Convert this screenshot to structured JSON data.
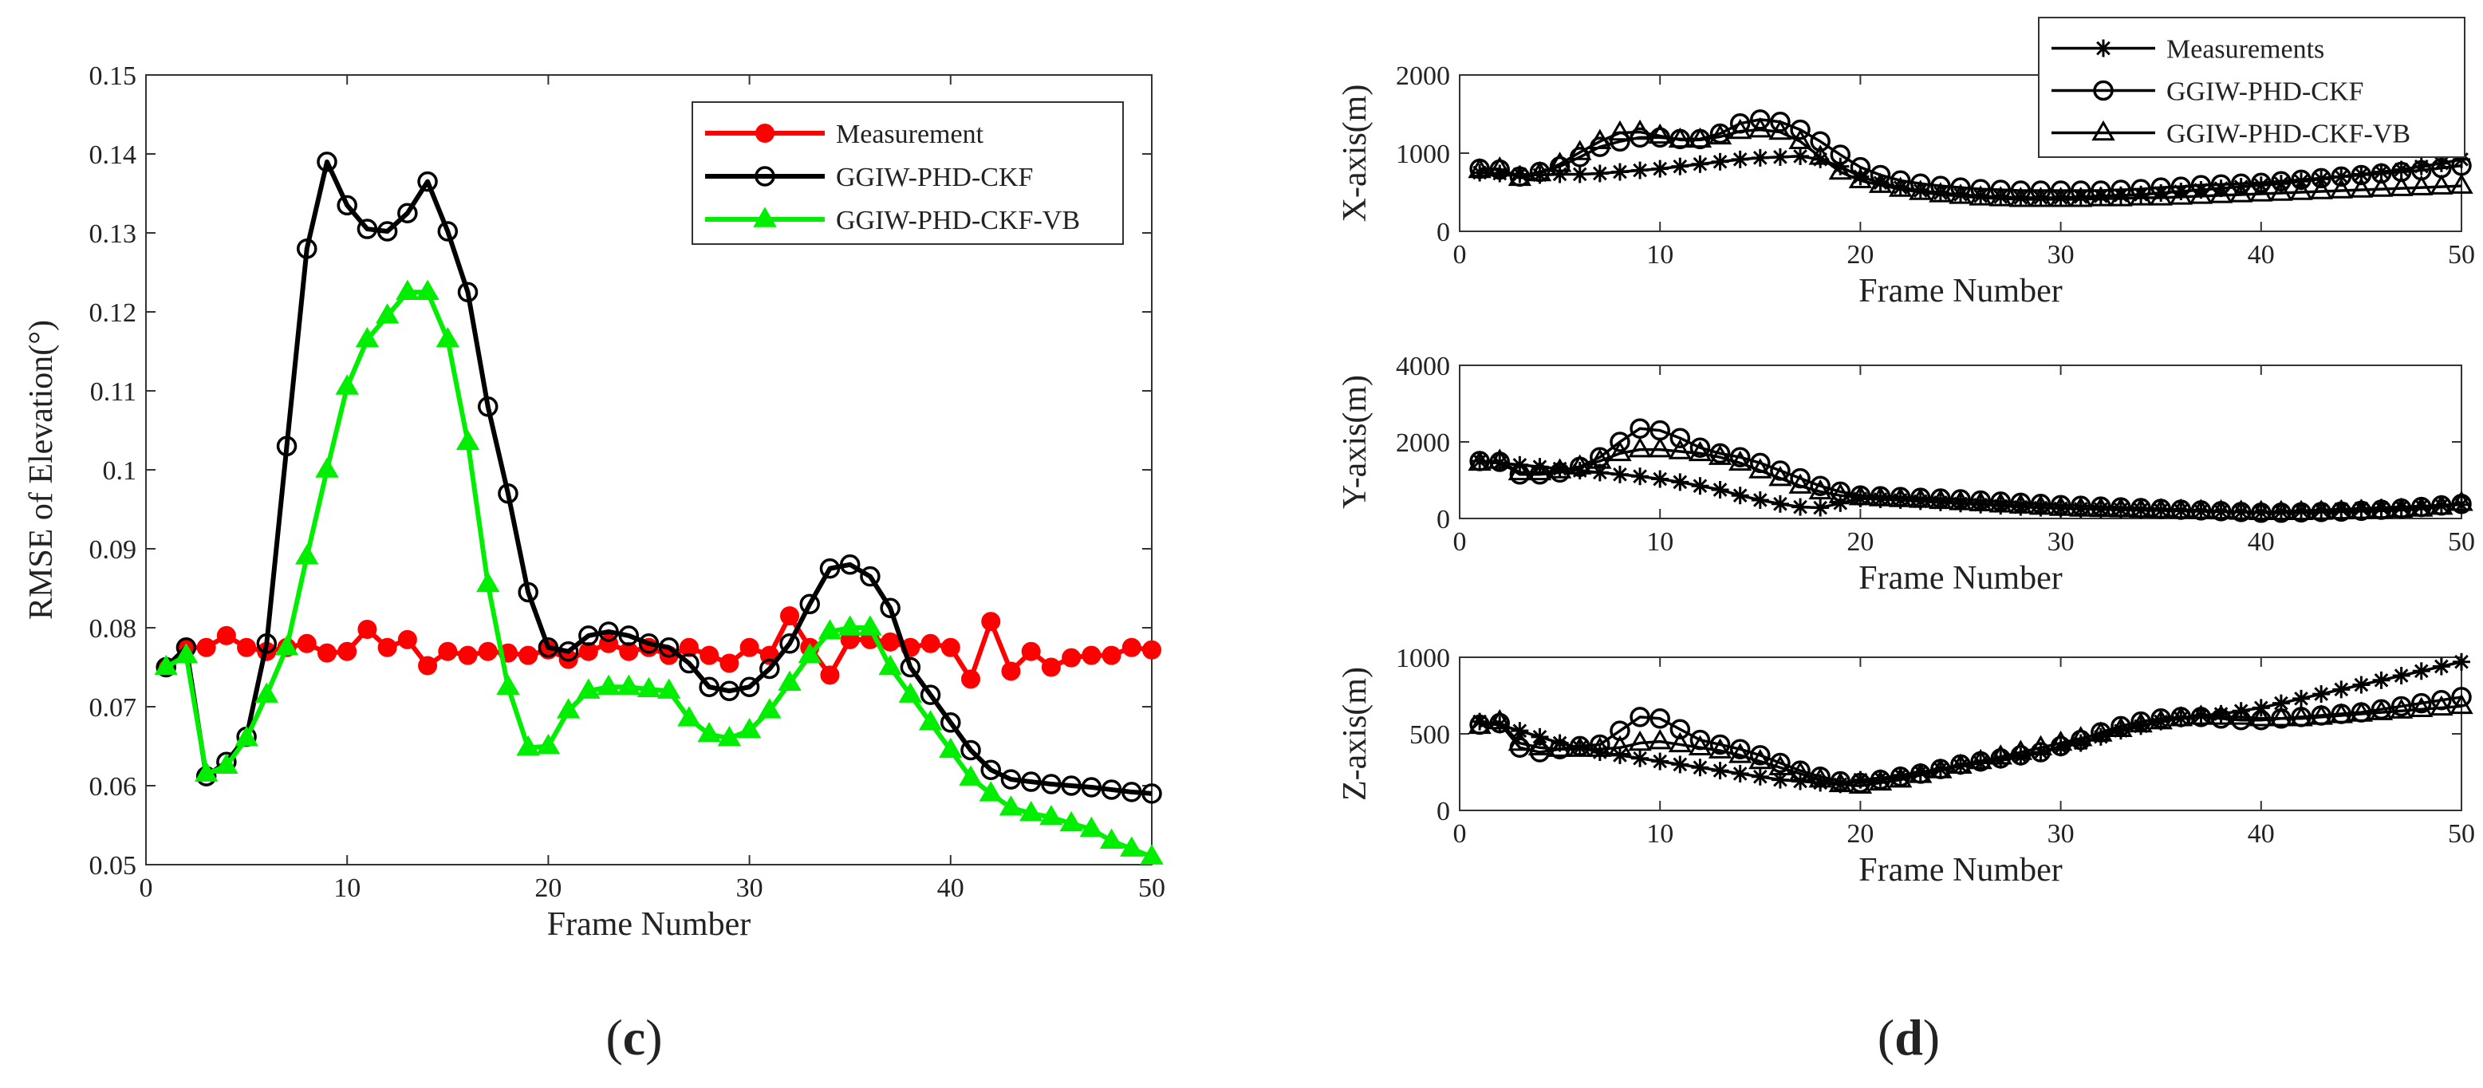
{
  "panel_labels": {
    "c": {
      "open": "(",
      "letter": "c",
      "close": ")"
    },
    "d": {
      "open": "(",
      "letter": "d",
      "close": ")"
    }
  },
  "chart_data": [
    {
      "id": "c",
      "type": "line",
      "xlabel": "Frame Number",
      "ylabel": "RMSE of Elevation(°)",
      "xlim": [
        0,
        50
      ],
      "ylim": [
        0.05,
        0.15
      ],
      "xticks": [
        0,
        10,
        20,
        30,
        40,
        50
      ],
      "yticks": [
        0.05,
        0.06,
        0.07,
        0.08,
        0.09,
        0.1,
        0.11,
        0.12,
        0.13,
        0.14,
        0.15
      ],
      "ytick_labels": [
        "0.05",
        "0.06",
        "0.07",
        "0.08",
        "0.09",
        "0.1",
        "0.11",
        "0.12",
        "0.13",
        "0.14",
        "0.15"
      ],
      "legend_position": "top-right",
      "grid": false,
      "x": [
        1,
        2,
        3,
        4,
        5,
        6,
        7,
        8,
        9,
        10,
        11,
        12,
        13,
        14,
        15,
        16,
        17,
        18,
        19,
        20,
        21,
        22,
        23,
        24,
        25,
        26,
        27,
        28,
        29,
        30,
        31,
        32,
        33,
        34,
        35,
        36,
        37,
        38,
        39,
        40,
        41,
        42,
        43,
        44,
        45,
        46,
        47,
        48,
        49,
        50
      ],
      "series": [
        {
          "name": "Measurement",
          "color": "#ff0000",
          "marker": "filled-circle",
          "values": [
            0.075,
            0.0775,
            0.0775,
            0.079,
            0.0775,
            0.077,
            0.0775,
            0.078,
            0.0768,
            0.077,
            0.0798,
            0.0775,
            0.0785,
            0.0752,
            0.077,
            0.0765,
            0.077,
            0.0768,
            0.0765,
            0.0772,
            0.076,
            0.077,
            0.078,
            0.077,
            0.0775,
            0.0765,
            0.0775,
            0.0765,
            0.0755,
            0.0775,
            0.0765,
            0.0815,
            0.0775,
            0.074,
            0.0785,
            0.0785,
            0.0782,
            0.0775,
            0.078,
            0.0775,
            0.0735,
            0.0808,
            0.0745,
            0.077,
            0.075,
            0.0762,
            0.0765,
            0.0765,
            0.0775,
            0.0772
          ]
        },
        {
          "name": "GGIW-PHD-CKF",
          "color": "#000000",
          "marker": "open-circle",
          "values": [
            0.075,
            0.0775,
            0.0612,
            0.063,
            0.0662,
            0.078,
            0.103,
            0.128,
            0.139,
            0.1335,
            0.1305,
            0.1302,
            0.1325,
            0.1365,
            0.1302,
            0.1225,
            0.108,
            0.097,
            0.0845,
            0.0775,
            0.077,
            0.079,
            0.0795,
            0.079,
            0.078,
            0.0775,
            0.0755,
            0.0725,
            0.072,
            0.0725,
            0.0748,
            0.078,
            0.083,
            0.0875,
            0.088,
            0.0865,
            0.0825,
            0.075,
            0.0715,
            0.068,
            0.0645,
            0.062,
            0.0608,
            0.0605,
            0.0602,
            0.06,
            0.0598,
            0.0595,
            0.0592,
            0.059
          ]
        },
        {
          "name": "GGIW-PHD-CKF-VB",
          "color": "#00ee00",
          "marker": "filled-triangle",
          "values": [
            0.075,
            0.0765,
            0.0615,
            0.0625,
            0.066,
            0.0715,
            0.0775,
            0.089,
            0.1,
            0.1105,
            0.1165,
            0.1195,
            0.1225,
            0.1225,
            0.1165,
            0.1035,
            0.0855,
            0.0725,
            0.0648,
            0.065,
            0.0695,
            0.072,
            0.0725,
            0.0725,
            0.0722,
            0.072,
            0.0685,
            0.0665,
            0.066,
            0.067,
            0.0695,
            0.073,
            0.0765,
            0.0795,
            0.08,
            0.08,
            0.075,
            0.0715,
            0.068,
            0.0645,
            0.061,
            0.059,
            0.0572,
            0.0565,
            0.056,
            0.0552,
            0.0545,
            0.053,
            0.052,
            0.051
          ]
        }
      ]
    },
    {
      "id": "d-x",
      "type": "line",
      "xlabel": "Frame Number",
      "ylabel": "X-axis(m)",
      "xlim": [
        0,
        50
      ],
      "ylim": [
        0,
        2000
      ],
      "xticks": [
        0,
        10,
        20,
        30,
        40,
        50
      ],
      "yticks": [
        0,
        1000,
        2000
      ],
      "legend_position": "top-right",
      "grid": false,
      "x": [
        1,
        2,
        3,
        4,
        5,
        6,
        7,
        8,
        9,
        10,
        11,
        12,
        13,
        14,
        15,
        16,
        17,
        18,
        19,
        20,
        21,
        22,
        23,
        24,
        25,
        26,
        27,
        28,
        29,
        30,
        31,
        32,
        33,
        34,
        35,
        36,
        37,
        38,
        39,
        40,
        41,
        42,
        43,
        44,
        45,
        46,
        47,
        48,
        49,
        50
      ],
      "series": [
        {
          "name": "Measurements",
          "color": "#000000",
          "marker": "asterisk",
          "values": [
            750,
            740,
            730,
            720,
            730,
            730,
            740,
            760,
            780,
            800,
            830,
            860,
            890,
            920,
            940,
            950,
            960,
            920,
            830,
            700,
            620,
            560,
            520,
            490,
            470,
            450,
            440,
            430,
            430,
            430,
            440,
            450,
            460,
            470,
            490,
            510,
            530,
            550,
            570,
            590,
            610,
            640,
            670,
            700,
            730,
            760,
            790,
            830,
            870,
            920
          ]
        },
        {
          "name": "GGIW-PHD-CKF",
          "color": "#000000",
          "marker": "open-circle",
          "values": [
            800,
            790,
            700,
            760,
            830,
            950,
            1080,
            1150,
            1200,
            1200,
            1180,
            1180,
            1250,
            1380,
            1430,
            1400,
            1300,
            1150,
            980,
            820,
            720,
            650,
            610,
            580,
            560,
            540,
            530,
            520,
            520,
            520,
            520,
            520,
            530,
            540,
            560,
            570,
            590,
            600,
            610,
            620,
            640,
            660,
            680,
            700,
            720,
            740,
            760,
            780,
            810,
            840
          ]
        },
        {
          "name": "GGIW-PHD-CKF-VB",
          "color": "#000000",
          "marker": "open-triangle",
          "values": [
            780,
            800,
            680,
            740,
            860,
            1010,
            1150,
            1260,
            1270,
            1220,
            1170,
            1170,
            1210,
            1280,
            1300,
            1270,
            1150,
            950,
            760,
            650,
            590,
            540,
            500,
            470,
            450,
            430,
            420,
            410,
            410,
            410,
            410,
            420,
            420,
            430,
            430,
            440,
            450,
            460,
            470,
            480,
            490,
            500,
            510,
            520,
            530,
            540,
            550,
            560,
            570,
            580
          ]
        }
      ]
    },
    {
      "id": "d-y",
      "type": "line",
      "xlabel": "Frame Number",
      "ylabel": "Y-axis(m)",
      "xlim": [
        0,
        50
      ],
      "ylim": [
        0,
        4000
      ],
      "xticks": [
        0,
        10,
        20,
        30,
        40,
        50
      ],
      "yticks": [
        0,
        2000,
        4000
      ],
      "grid": false,
      "x": [
        1,
        2,
        3,
        4,
        5,
        6,
        7,
        8,
        9,
        10,
        11,
        12,
        13,
        14,
        15,
        16,
        17,
        18,
        19,
        20,
        21,
        22,
        23,
        24,
        25,
        26,
        27,
        28,
        29,
        30,
        31,
        32,
        33,
        34,
        35,
        36,
        37,
        38,
        39,
        40,
        41,
        42,
        43,
        44,
        45,
        46,
        47,
        48,
        49,
        50
      ],
      "series": [
        {
          "name": "Measurements",
          "color": "#000000",
          "marker": "asterisk",
          "values": [
            1500,
            1450,
            1400,
            1350,
            1300,
            1250,
            1200,
            1150,
            1100,
            1030,
            950,
            850,
            750,
            600,
            480,
            380,
            300,
            280,
            400,
            520,
            500,
            480,
            450,
            420,
            390,
            360,
            330,
            300,
            280,
            260,
            250,
            240,
            230,
            220,
            210,
            200,
            190,
            180,
            170,
            160,
            180,
            200,
            220,
            240,
            260,
            280,
            300,
            320,
            340,
            360
          ]
        },
        {
          "name": "GGIW-PHD-CKF",
          "color": "#000000",
          "marker": "open-circle",
          "values": [
            1500,
            1480,
            1150,
            1150,
            1200,
            1350,
            1600,
            2000,
            2350,
            2300,
            2100,
            1850,
            1700,
            1600,
            1450,
            1250,
            1050,
            850,
            700,
            600,
            580,
            560,
            540,
            520,
            500,
            470,
            440,
            410,
            380,
            350,
            330,
            310,
            290,
            270,
            250,
            230,
            210,
            190,
            170,
            150,
            150,
            160,
            170,
            180,
            200,
            230,
            260,
            300,
            340,
            380
          ]
        },
        {
          "name": "GGIW-PHD-CKF-VB",
          "color": "#000000",
          "marker": "open-triangle",
          "values": [
            1450,
            1500,
            1200,
            1200,
            1250,
            1350,
            1500,
            1700,
            1800,
            1800,
            1750,
            1700,
            1600,
            1450,
            1250,
            1050,
            850,
            700,
            600,
            550,
            520,
            500,
            480,
            450,
            420,
            390,
            360,
            330,
            300,
            270,
            250,
            240,
            230,
            220,
            210,
            200,
            190,
            180,
            170,
            160,
            160,
            160,
            170,
            180,
            190,
            200,
            220,
            250,
            300,
            400
          ]
        }
      ]
    },
    {
      "id": "d-z",
      "type": "line",
      "xlabel": "Frame Number",
      "ylabel": "Z-axis(m)",
      "xlim": [
        0,
        50
      ],
      "ylim": [
        0,
        1000
      ],
      "xticks": [
        0,
        10,
        20,
        30,
        40,
        50
      ],
      "yticks": [
        0,
        500,
        1000
      ],
      "grid": false,
      "x": [
        1,
        2,
        3,
        4,
        5,
        6,
        7,
        8,
        9,
        10,
        11,
        12,
        13,
        14,
        15,
        16,
        17,
        18,
        19,
        20,
        21,
        22,
        23,
        24,
        25,
        26,
        27,
        28,
        29,
        30,
        31,
        32,
        33,
        34,
        35,
        36,
        37,
        38,
        39,
        40,
        41,
        42,
        43,
        44,
        45,
        46,
        47,
        48,
        49,
        50
      ],
      "series": [
        {
          "name": "Measurements",
          "color": "#000000",
          "marker": "asterisk",
          "values": [
            580,
            560,
            520,
            480,
            440,
            410,
            380,
            360,
            340,
            320,
            300,
            280,
            260,
            240,
            220,
            200,
            190,
            180,
            170,
            200,
            210,
            230,
            250,
            270,
            290,
            310,
            330,
            350,
            380,
            410,
            440,
            480,
            520,
            550,
            580,
            600,
            620,
            630,
            650,
            670,
            700,
            730,
            760,
            790,
            820,
            850,
            880,
            910,
            940,
            970
          ]
        },
        {
          "name": "GGIW-PHD-CKF",
          "color": "#000000",
          "marker": "open-circle",
          "values": [
            560,
            570,
            410,
            380,
            400,
            420,
            430,
            520,
            610,
            600,
            530,
            460,
            430,
            400,
            360,
            310,
            260,
            220,
            190,
            180,
            200,
            220,
            240,
            270,
            300,
            320,
            340,
            360,
            380,
            420,
            460,
            510,
            550,
            580,
            600,
            610,
            610,
            600,
            590,
            590,
            600,
            610,
            620,
            630,
            640,
            660,
            680,
            700,
            720,
            740
          ]
        },
        {
          "name": "GGIW-PHD-CKF-VB",
          "color": "#000000",
          "marker": "open-triangle",
          "values": [
            550,
            580,
            440,
            410,
            400,
            400,
            400,
            410,
            440,
            450,
            430,
            410,
            390,
            360,
            320,
            280,
            240,
            200,
            170,
            160,
            180,
            200,
            230,
            260,
            290,
            320,
            350,
            380,
            410,
            440,
            470,
            500,
            530,
            560,
            580,
            600,
            610,
            610,
            610,
            600,
            600,
            600,
            610,
            620,
            630,
            640,
            650,
            660,
            670,
            680
          ]
        }
      ]
    }
  ]
}
